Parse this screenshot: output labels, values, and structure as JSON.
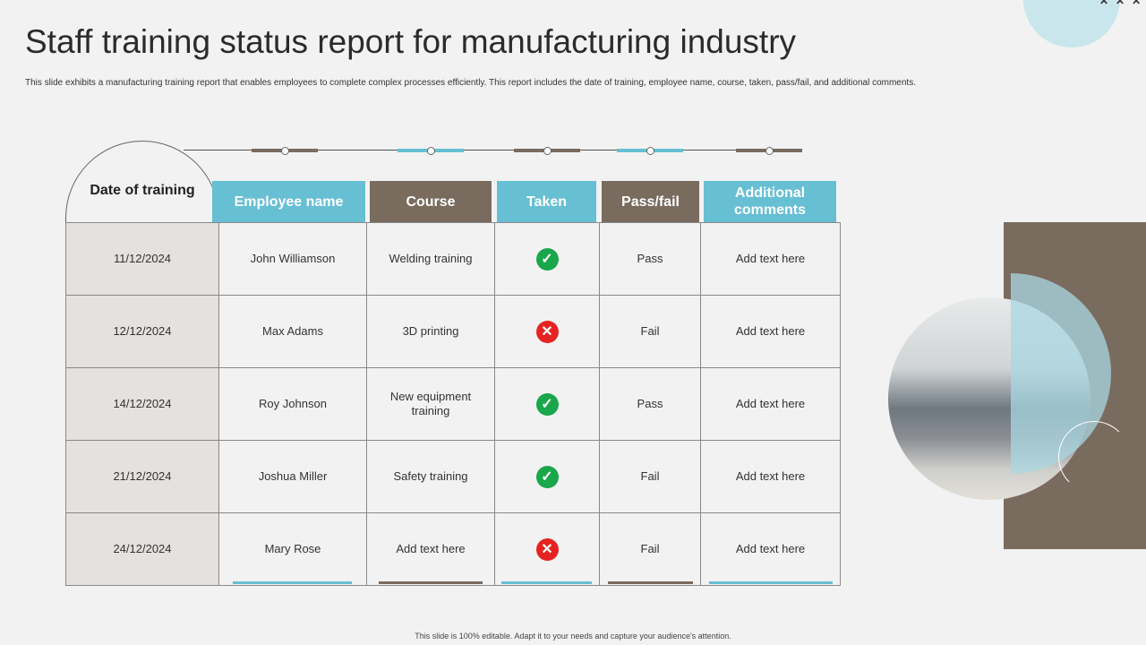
{
  "title": "Staff training status report for manufacturing industry",
  "subtitle": "This slide exhibits a manufacturing training  report that enables employees to complete  complex processes efficiently. This report includes the date of training,  employee name,  course, taken, pass/fail, and additional  comments.",
  "footer": "This slide is 100% editable. Adapt it to your needs and capture your audience's attention.",
  "colors": {
    "teal": "#67bfd3",
    "brown": "#7a6b5f",
    "pass_icon": "#1aa64a",
    "fail_icon": "#e52421"
  },
  "headers": [
    "Date of training",
    "Employee name",
    "Course",
    "Taken",
    "Pass/fail",
    "Additional comments"
  ],
  "rows": [
    {
      "date": "11/12/2024",
      "name": "John Williamson",
      "course": "Welding training",
      "taken": "check-icon",
      "result": "Pass",
      "comments": "Add text here"
    },
    {
      "date": "12/12/2024",
      "name": "Max Adams",
      "course": "3D printing",
      "taken": "cross-icon",
      "result": "Fail",
      "comments": "Add text here"
    },
    {
      "date": "14/12/2024",
      "name": "Roy Johnson",
      "course": "New equipment training",
      "taken": "check-icon",
      "result": "Pass",
      "comments": "Add text here"
    },
    {
      "date": "21/12/2024",
      "name": "Joshua Miller",
      "course": "Safety training",
      "taken": "check-icon",
      "result": "Fail",
      "comments": "Add text here"
    },
    {
      "date": "24/12/2024",
      "name": "Mary Rose",
      "course": "Add text here",
      "taken": "cross-icon",
      "result": "Fail",
      "comments": "Add text here"
    }
  ]
}
